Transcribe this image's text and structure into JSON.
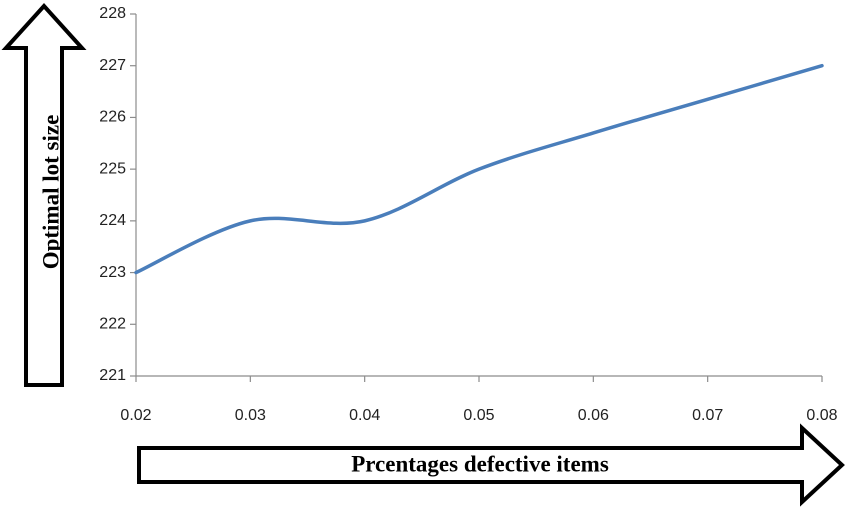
{
  "chart_data": {
    "type": "line",
    "title": "",
    "xlabel": "Prcentages defective items",
    "ylabel": "Optimal lot size",
    "x": [
      0.02,
      0.03,
      0.04,
      0.05,
      0.06,
      0.07,
      0.08
    ],
    "x_tick_labels": [
      "0.02",
      "0.03",
      "0.04",
      "0.05",
      "0.06",
      "0.07",
      "0.08"
    ],
    "y_tick_labels": [
      "221",
      "222",
      "223",
      "224",
      "225",
      "226",
      "227",
      "228"
    ],
    "xlim": [
      0.02,
      0.08
    ],
    "ylim": [
      221,
      228
    ],
    "grid": false,
    "legend": "none",
    "series": [
      {
        "values": [
          223,
          224,
          224,
          225,
          225.7,
          226.35,
          227
        ]
      }
    ],
    "colors": {
      "line": "#4a7ebb",
      "axis": "#8c8c8c",
      "arrow": "#000000"
    }
  }
}
